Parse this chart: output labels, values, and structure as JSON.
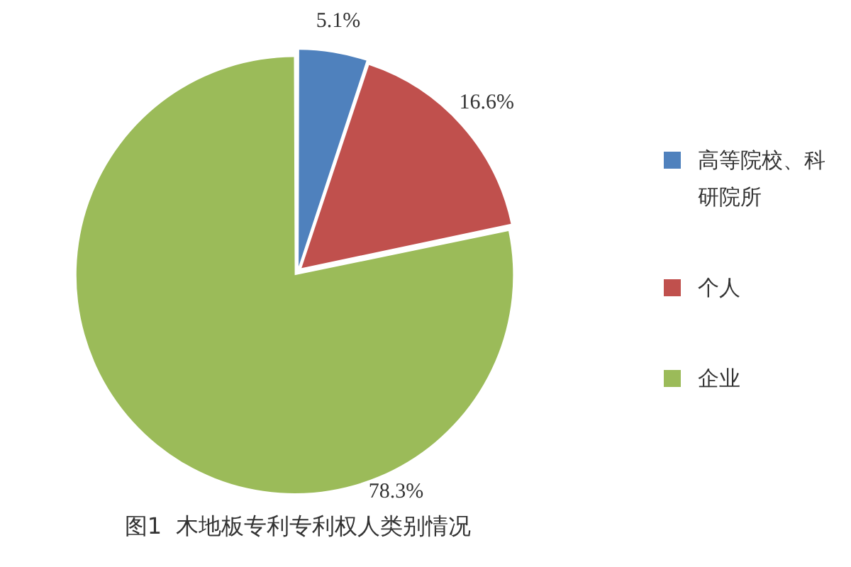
{
  "chart_data": {
    "type": "pie",
    "title": "图1  木地板专利专利权人类别情况",
    "categories": [
      "高等院校、科研院所",
      "个人",
      "企业"
    ],
    "values": [
      5.1,
      16.6,
      78.3
    ],
    "colors": [
      "#4f81bd",
      "#c0504d",
      "#9bbb59"
    ],
    "value_labels": [
      "5.1%",
      "16.6%",
      "78.3%"
    ],
    "legend": "right"
  }
}
